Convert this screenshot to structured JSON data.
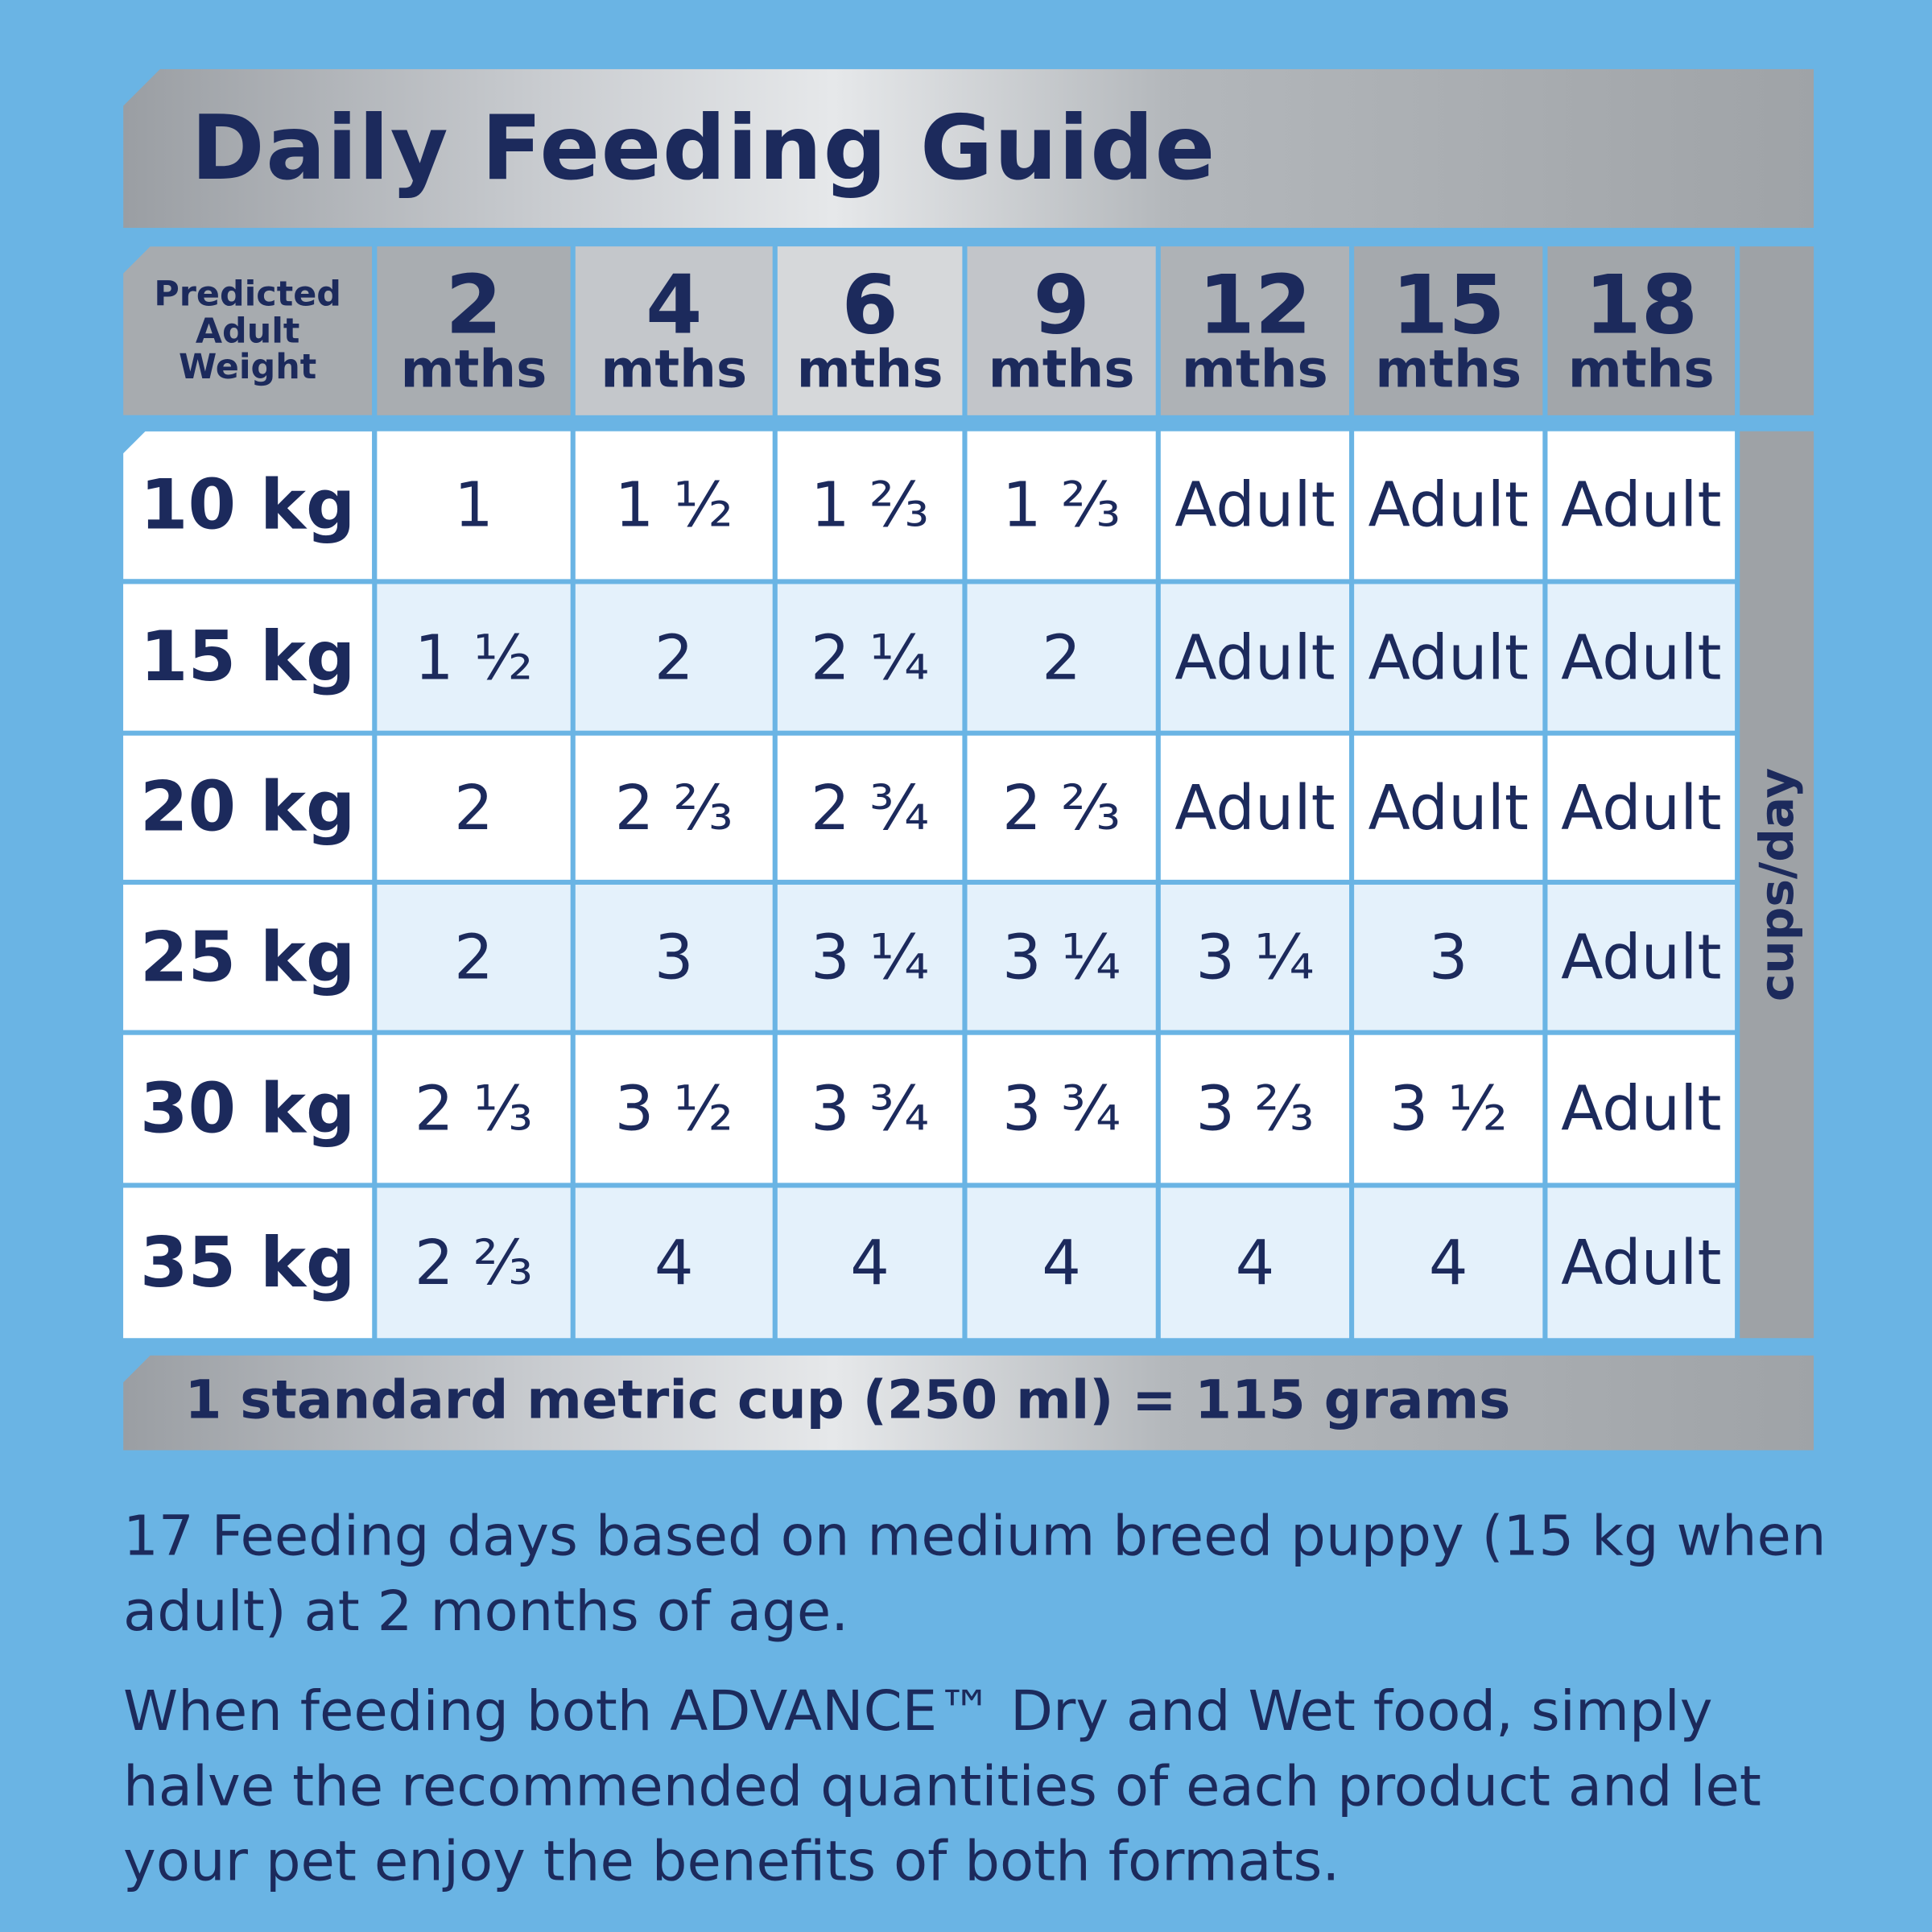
{
  "header": {
    "title": "Daily Feeding Guide"
  },
  "table": {
    "corner": [
      "Predicted",
      "Adult",
      "Weight"
    ],
    "columns": [
      {
        "age": "2",
        "unit": "mths"
      },
      {
        "age": "4",
        "unit": "mths"
      },
      {
        "age": "6",
        "unit": "mths"
      },
      {
        "age": "9",
        "unit": "mths"
      },
      {
        "age": "12",
        "unit": "mths"
      },
      {
        "age": "15",
        "unit": "mths"
      },
      {
        "age": "18",
        "unit": "mths"
      }
    ],
    "rows": [
      {
        "weight": "10 kg",
        "cells": [
          "1",
          "1 ½",
          "1 ⅔",
          "1 ⅔",
          "Adult",
          "Adult",
          "Adult"
        ]
      },
      {
        "weight": "15 kg",
        "cells": [
          "1 ½",
          "2",
          "2 ¼",
          "2",
          "Adult",
          "Adult",
          "Adult"
        ]
      },
      {
        "weight": "20 kg",
        "cells": [
          "2",
          "2 ⅔",
          "2 ¾",
          "2 ⅔",
          "Adult",
          "Adult",
          "Adult"
        ]
      },
      {
        "weight": "25 kg",
        "cells": [
          "2",
          "3",
          "3 ¼",
          "3 ¼",
          "3 ¼",
          "3",
          "Adult"
        ]
      },
      {
        "weight": "30 kg",
        "cells": [
          "2 ⅓",
          "3 ½",
          "3 ¾",
          "3 ¾",
          "3 ⅔",
          "3 ½",
          "Adult"
        ]
      },
      {
        "weight": "35 kg",
        "cells": [
          "2 ⅔",
          "4",
          "4",
          "4",
          "4",
          "4",
          "Adult"
        ]
      }
    ],
    "unit_label": "cups/day"
  },
  "footer": {
    "note": "1 standard metric cup (250 ml) = 115 grams"
  },
  "paragraphs": [
    "17 Feeding days based on medium breed puppy (15 kg when adult) at 2 months of age.",
    "When feeding both ADVANCE™ Dry and Wet food, simply halve the recommended quantities of each product and let your pet enjoy the benefits of both formats."
  ]
}
